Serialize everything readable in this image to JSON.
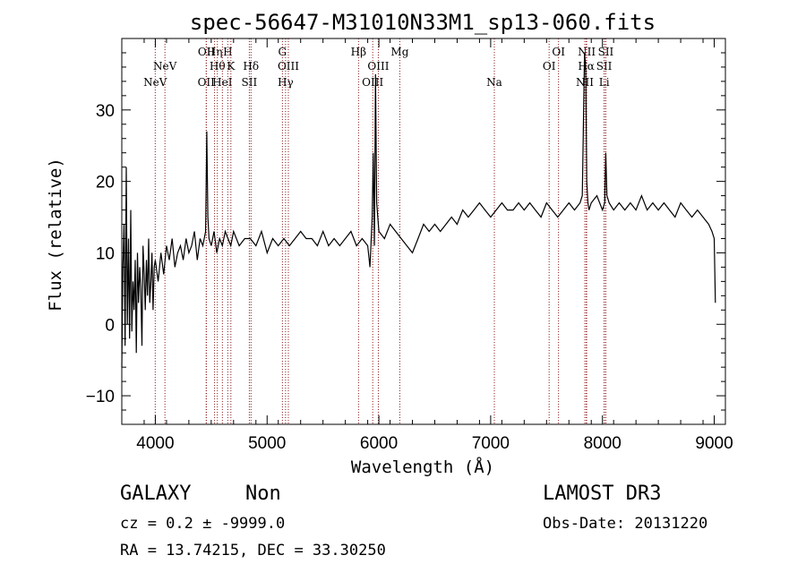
{
  "chart_data": {
    "type": "line",
    "title": "spec-56647-M31010N33M1_sp13-060.fits",
    "xlabel": "Wavelength (Å)",
    "ylabel": "Flux (relative)",
    "xlim": [
      3700,
      9100
    ],
    "ylim": [
      -14,
      40
    ],
    "xticks": [
      4000,
      5000,
      6000,
      7000,
      8000,
      9000
    ],
    "yticks": [
      -10,
      0,
      10,
      20,
      30
    ],
    "grid": false,
    "series": [
      {
        "name": "spectrum",
        "x": [
          3700,
          3710,
          3720,
          3730,
          3740,
          3750,
          3760,
          3770,
          3780,
          3790,
          3800,
          3810,
          3820,
          3830,
          3840,
          3850,
          3860,
          3870,
          3880,
          3890,
          3900,
          3910,
          3920,
          3930,
          3940,
          3950,
          3960,
          3970,
          3980,
          3990,
          4000,
          4025,
          4050,
          4075,
          4100,
          4125,
          4150,
          4175,
          4200,
          4225,
          4250,
          4275,
          4300,
          4325,
          4350,
          4375,
          4400,
          4425,
          4450,
          4460,
          4470,
          4480,
          4500,
          4525,
          4550,
          4575,
          4600,
          4625,
          4650,
          4675,
          4700,
          4750,
          4800,
          4850,
          4900,
          4950,
          5000,
          5050,
          5100,
          5150,
          5200,
          5250,
          5300,
          5350,
          5400,
          5450,
          5500,
          5550,
          5600,
          5650,
          5700,
          5750,
          5800,
          5850,
          5900,
          5920,
          5940,
          5950,
          5960,
          5970,
          5980,
          6000,
          6050,
          6100,
          6150,
          6200,
          6250,
          6300,
          6350,
          6400,
          6450,
          6500,
          6550,
          6600,
          6650,
          6700,
          6750,
          6800,
          6850,
          6900,
          6950,
          7000,
          7050,
          7100,
          7150,
          7200,
          7250,
          7300,
          7350,
          7400,
          7450,
          7500,
          7550,
          7600,
          7650,
          7700,
          7750,
          7800,
          7820,
          7840,
          7850,
          7860,
          7870,
          7880,
          7900,
          7950,
          8000,
          8020,
          8030,
          8040,
          8060,
          8100,
          8150,
          8200,
          8250,
          8300,
          8350,
          8400,
          8450,
          8500,
          8550,
          8600,
          8650,
          8700,
          8750,
          8800,
          8850,
          8900,
          8950,
          8980,
          9000,
          9010
        ],
        "values": [
          -6,
          8,
          14,
          -3,
          22,
          0,
          12,
          -2,
          16,
          -1,
          6,
          2,
          9,
          -4,
          10,
          3,
          8,
          5,
          -3,
          11,
          7,
          2,
          9,
          4,
          12,
          3,
          6,
          10,
          2,
          8,
          9,
          6,
          10,
          7,
          11,
          9,
          12,
          8,
          10,
          11,
          9,
          12,
          10,
          11,
          13,
          9,
          12,
          11,
          13,
          27,
          15,
          12,
          11,
          13,
          10,
          12,
          11,
          13,
          12,
          11,
          13,
          11,
          12,
          12,
          11,
          13,
          10,
          12,
          11,
          12,
          11,
          12,
          13,
          12,
          12,
          11,
          13,
          11,
          12,
          11,
          12,
          13,
          11,
          12,
          11,
          8,
          15,
          24,
          11,
          35,
          17,
          13,
          12,
          14,
          13,
          12,
          11,
          10,
          12,
          14,
          13,
          14,
          13,
          14,
          15,
          14,
          16,
          15,
          16,
          17,
          16,
          15,
          16,
          17,
          16,
          16,
          17,
          16,
          17,
          16,
          15,
          17,
          16,
          15,
          16,
          17,
          16,
          17,
          18,
          38,
          36,
          20,
          17,
          16,
          17,
          18,
          16,
          17,
          24,
          18,
          17,
          16,
          17,
          16,
          17,
          16,
          18,
          16,
          17,
          16,
          17,
          16,
          15,
          17,
          16,
          15,
          16,
          15,
          14,
          13,
          12,
          3
        ]
      }
    ],
    "line_markers": [
      {
        "label": "NeV",
        "wavelength": 3999,
        "row": 3
      },
      {
        "label": "NeV",
        "wavelength": 4086,
        "row": 2
      },
      {
        "label": "OII",
        "wavelength": 4455,
        "row": 3
      },
      {
        "label": "OII",
        "wavelength": 4457,
        "row": 1
      },
      {
        "label": "Hη",
        "wavelength": 4530,
        "row": 1
      },
      {
        "label": "Hθ",
        "wavelength": 4555,
        "row": 2
      },
      {
        "label": "HeI",
        "wavelength": 4600,
        "row": 3
      },
      {
        "label": "H",
        "wavelength": 4648,
        "row": 1
      },
      {
        "label": "K",
        "wavelength": 4676,
        "row": 2
      },
      {
        "label": "Hδ",
        "wavelength": 4856,
        "row": 2
      },
      {
        "label": "SII",
        "wavelength": 4841,
        "row": 3
      },
      {
        "label": "G",
        "wavelength": 5137,
        "row": 1
      },
      {
        "label": "OIII",
        "wavelength": 5190,
        "row": 2
      },
      {
        "label": "Hγ",
        "wavelength": 5165,
        "row": 3
      },
      {
        "label": "Hβ",
        "wavelength": 5818,
        "row": 1
      },
      {
        "label": "OIII",
        "wavelength": 5945,
        "row": 3
      },
      {
        "label": "OIII",
        "wavelength": 5995,
        "row": 2
      },
      {
        "label": "Mg",
        "wavelength": 6187,
        "row": 1
      },
      {
        "label": "Na",
        "wavelength": 7033,
        "row": 3
      },
      {
        "label": "OI",
        "wavelength": 7523,
        "row": 2
      },
      {
        "label": "OI",
        "wavelength": 7607,
        "row": 1
      },
      {
        "label": "NII",
        "wavelength": 7842,
        "row": 3
      },
      {
        "label": "Hα",
        "wavelength": 7855,
        "row": 2
      },
      {
        "label": "NII",
        "wavelength": 7859,
        "row": 1
      },
      {
        "label": "SII",
        "wavelength": 8030,
        "row": 1
      },
      {
        "label": "SII",
        "wavelength": 8015,
        "row": 2
      },
      {
        "label": "Li",
        "wavelength": 8016,
        "row": 3
      }
    ]
  },
  "info": {
    "class": "GALAXY",
    "subclass": "Non",
    "cz": "cz = 0.2 ± -9999.0",
    "radec": "RA =  13.74215, DEC =  33.30250",
    "survey": "LAMOST DR3",
    "obsdate": "Obs-Date: 20131220"
  },
  "colors": {
    "line": "#000000",
    "marker": "#8b1a1a"
  }
}
